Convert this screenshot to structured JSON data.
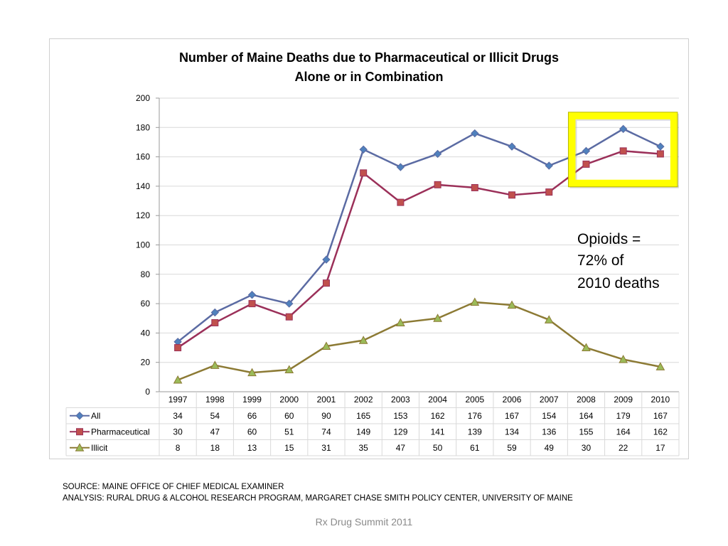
{
  "chart_data": {
    "type": "line",
    "title_lines": [
      "Number of Maine Deaths due to Pharmaceutical or Illicit Drugs",
      "Alone or in Combination"
    ],
    "categories": [
      "1997",
      "1998",
      "1999",
      "2000",
      "2001",
      "2002",
      "2003",
      "2004",
      "2005",
      "2006",
      "2007",
      "2008",
      "2009",
      "2010"
    ],
    "ylim": [
      0,
      200
    ],
    "yticks": [
      0,
      20,
      40,
      60,
      80,
      100,
      120,
      140,
      160,
      180,
      200
    ],
    "grid": true,
    "legend": "data-table-left",
    "series": [
      {
        "name": "All",
        "color": "#5B6BA3",
        "marker": "diamond",
        "marker_fill": "#4F81BD",
        "values": [
          34,
          54,
          66,
          60,
          90,
          165,
          153,
          162,
          176,
          167,
          154,
          164,
          179,
          167
        ]
      },
      {
        "name": "Pharmaceutical",
        "color": "#9B3059",
        "marker": "square",
        "marker_fill": "#C0504D",
        "values": [
          30,
          47,
          60,
          51,
          74,
          149,
          129,
          141,
          139,
          134,
          136,
          155,
          164,
          162
        ]
      },
      {
        "name": "Illicit",
        "color": "#8C7A34",
        "marker": "triangle",
        "marker_fill": "#9BBB59",
        "values": [
          8,
          18,
          13,
          15,
          31,
          35,
          47,
          50,
          61,
          59,
          49,
          30,
          22,
          17
        ]
      }
    ],
    "annotation_lines": [
      "Opioids =",
      "72% of",
      "2010 deaths"
    ],
    "highlight": {
      "from_category": "2008",
      "to_category": "2010",
      "y_from": 142,
      "y_to": 188,
      "border_color": "#FFFF00"
    }
  },
  "source_lines": [
    "SOURCE: MAINE OFFICE OF CHIEF MEDICAL EXAMINER",
    "ANALYSIS: RURAL DRUG & ALCOHOL RESEARCH PROGRAM, MARGARET CHASE SMITH POLICY CENTER, UNIVERSITY OF MAINE"
  ],
  "footer": "Rx Drug Summit 2011"
}
